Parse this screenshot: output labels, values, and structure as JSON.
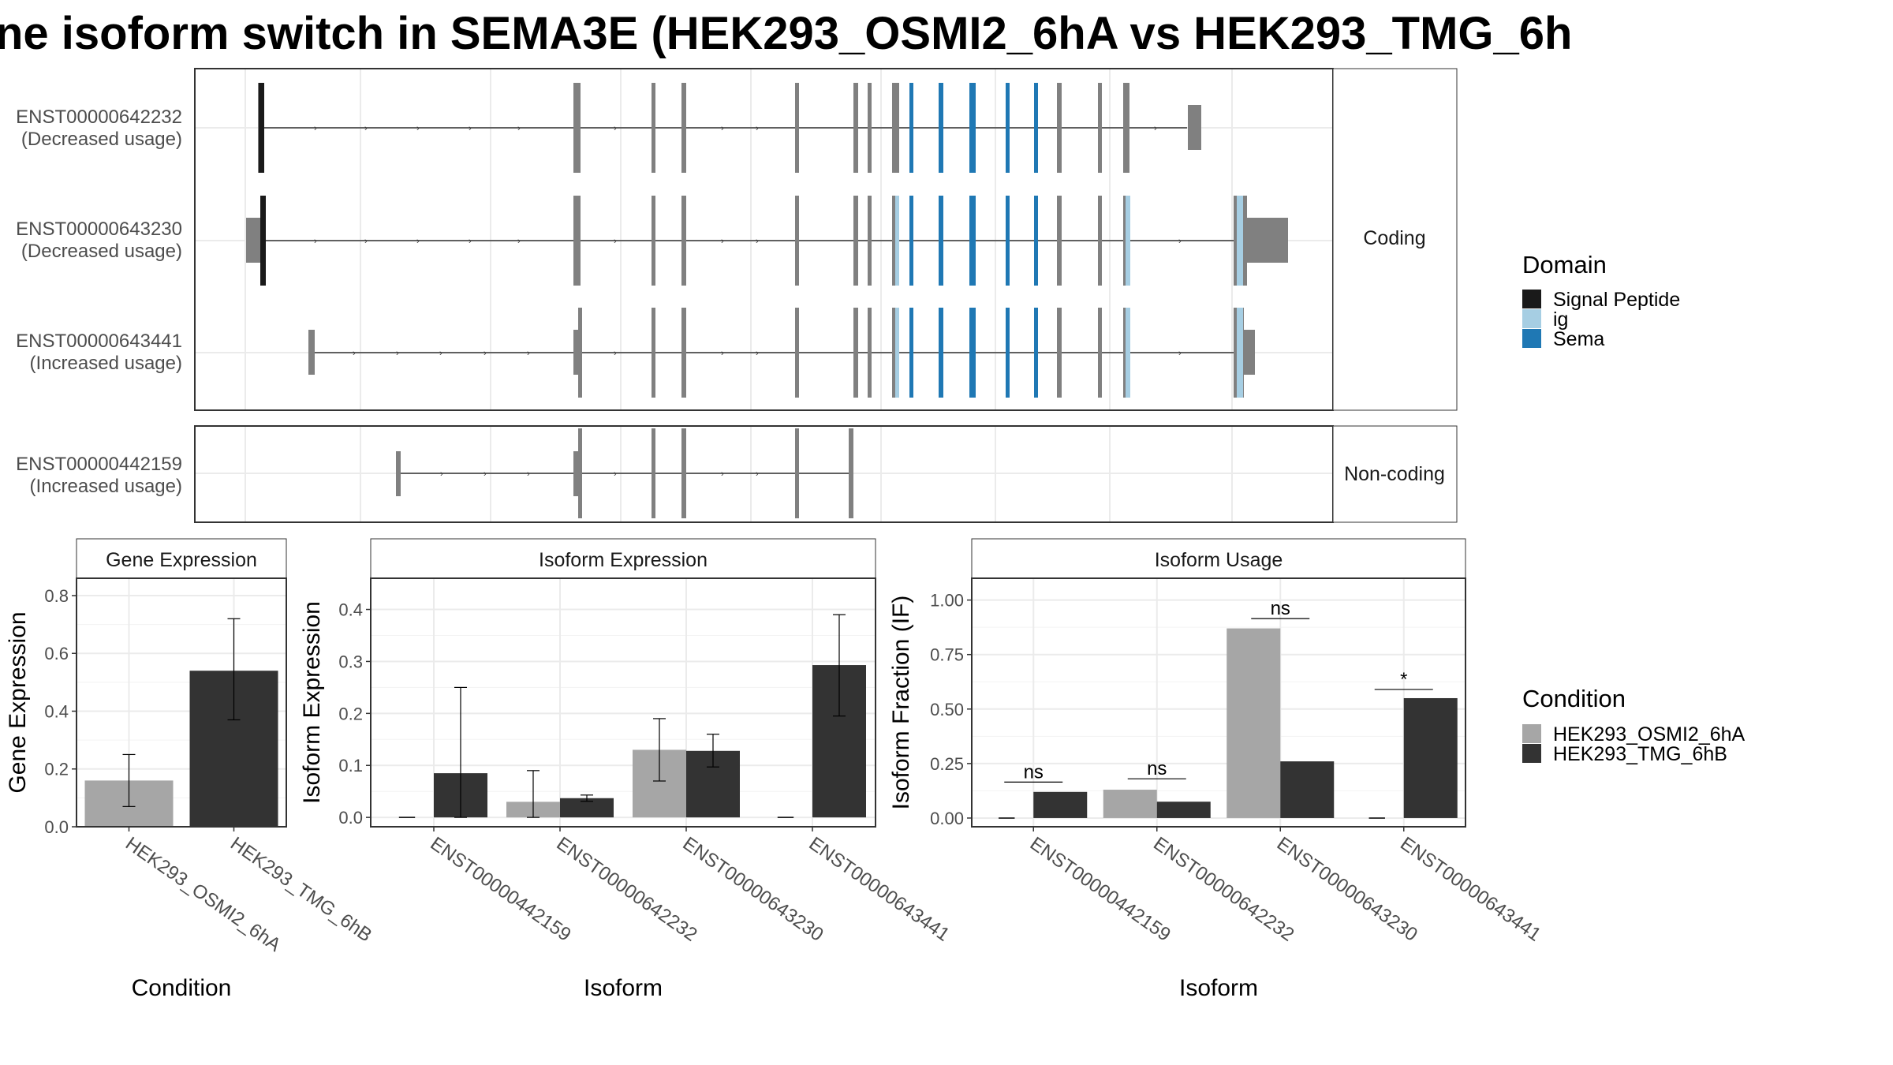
{
  "title": "ne isoform switch in SEMA3E (HEK293_OSMI2_6hA vs HEK293_TMG_6h",
  "colors": {
    "exon": "#808080",
    "signal_peptide": "#1a1a1a",
    "ig": "#a6cee3",
    "sema": "#1f78b4",
    "cond_a": "#a6a6a6",
    "cond_b": "#333333",
    "grid": "#ebebeb",
    "strip_fill": "#ffffff",
    "panel_border": "#333333"
  },
  "structure": {
    "facets": [
      "Coding",
      "Non-coding"
    ],
    "transcripts": [
      {
        "id": "ENST00000642232",
        "usage": "(Decreased usage)",
        "facet": "Coding"
      },
      {
        "id": "ENST00000643230",
        "usage": "(Decreased usage)",
        "facet": "Coding"
      },
      {
        "id": "ENST00000643441",
        "usage": "(Increased usage)",
        "facet": "Coding"
      },
      {
        "id": "ENST00000442159",
        "usage": "(Increased usage)",
        "facet": "Non-coding"
      }
    ],
    "domain_legend": {
      "title": "Domain",
      "items": [
        {
          "label": "Signal Peptide",
          "color": "#1a1a1a"
        },
        {
          "label": "ig",
          "color": "#a6cee3"
        },
        {
          "label": "Sema",
          "color": "#1f78b4"
        }
      ]
    }
  },
  "condition_legend": {
    "title": "Condition",
    "items": [
      {
        "label": "HEK293_OSMI2_6hA",
        "color": "#a6a6a6"
      },
      {
        "label": "HEK293_TMG_6hB",
        "color": "#333333"
      }
    ]
  },
  "chart_data": [
    {
      "type": "bar",
      "title": "Gene Expression",
      "xlabel": "Condition",
      "ylabel": "Gene Expression",
      "categories": [
        "HEK293_OSMI2_6hA",
        "HEK293_TMG_6hB"
      ],
      "values": [
        0.16,
        0.54
      ],
      "error_low": [
        0.07,
        0.37
      ],
      "error_high": [
        0.25,
        0.72
      ],
      "ylim": [
        0,
        0.86
      ],
      "yticks": [
        "0.0",
        "0.2",
        "0.4",
        "0.6",
        "0.8"
      ],
      "ytick_values": [
        0,
        0.2,
        0.4,
        0.6,
        0.8
      ]
    },
    {
      "type": "bar",
      "title": "Isoform Expression",
      "xlabel": "Isoform",
      "ylabel": "Isoform Expression",
      "categories": [
        "ENST00000442159",
        "ENST00000642232",
        "ENST00000643230",
        "ENST00000643441"
      ],
      "series": [
        {
          "name": "HEK293_OSMI2_6hA",
          "values": [
            0.0,
            0.03,
            0.13,
            0.0
          ],
          "error_low": [
            0.0,
            0.0,
            0.07,
            0.0
          ],
          "error_high": [
            0.0,
            0.09,
            0.19,
            0.0
          ]
        },
        {
          "name": "HEK293_TMG_6hB",
          "values": [
            0.085,
            0.037,
            0.128,
            0.293
          ],
          "error_low": [
            0.0,
            0.031,
            0.097,
            0.195
          ],
          "error_high": [
            0.25,
            0.043,
            0.16,
            0.39
          ]
        }
      ],
      "ylim": [
        -0.018,
        0.46
      ],
      "yticks": [
        "0.0",
        "0.1",
        "0.2",
        "0.3",
        "0.4"
      ],
      "ytick_values": [
        0,
        0.1,
        0.2,
        0.3,
        0.4
      ]
    },
    {
      "type": "bar",
      "title": "Isoform Usage",
      "xlabel": "Isoform",
      "ylabel": "Isoform Fraction (IF)",
      "categories": [
        "ENST00000442159",
        "ENST00000642232",
        "ENST00000643230",
        "ENST00000643441"
      ],
      "series": [
        {
          "name": "HEK293_OSMI2_6hA",
          "values": [
            0.0,
            0.13,
            0.87,
            0.0
          ]
        },
        {
          "name": "HEK293_TMG_6hB",
          "values": [
            0.12,
            0.075,
            0.26,
            0.55
          ]
        }
      ],
      "significance": [
        "ns",
        "ns",
        "ns",
        "*"
      ],
      "sig_y": [
        0.165,
        0.18,
        0.915,
        0.59
      ],
      "ylim": [
        -0.04,
        1.1
      ],
      "yticks": [
        "0.00",
        "0.25",
        "0.50",
        "0.75",
        "1.00"
      ],
      "ytick_values": [
        0,
        0.25,
        0.5,
        0.75,
        1.0
      ]
    }
  ]
}
